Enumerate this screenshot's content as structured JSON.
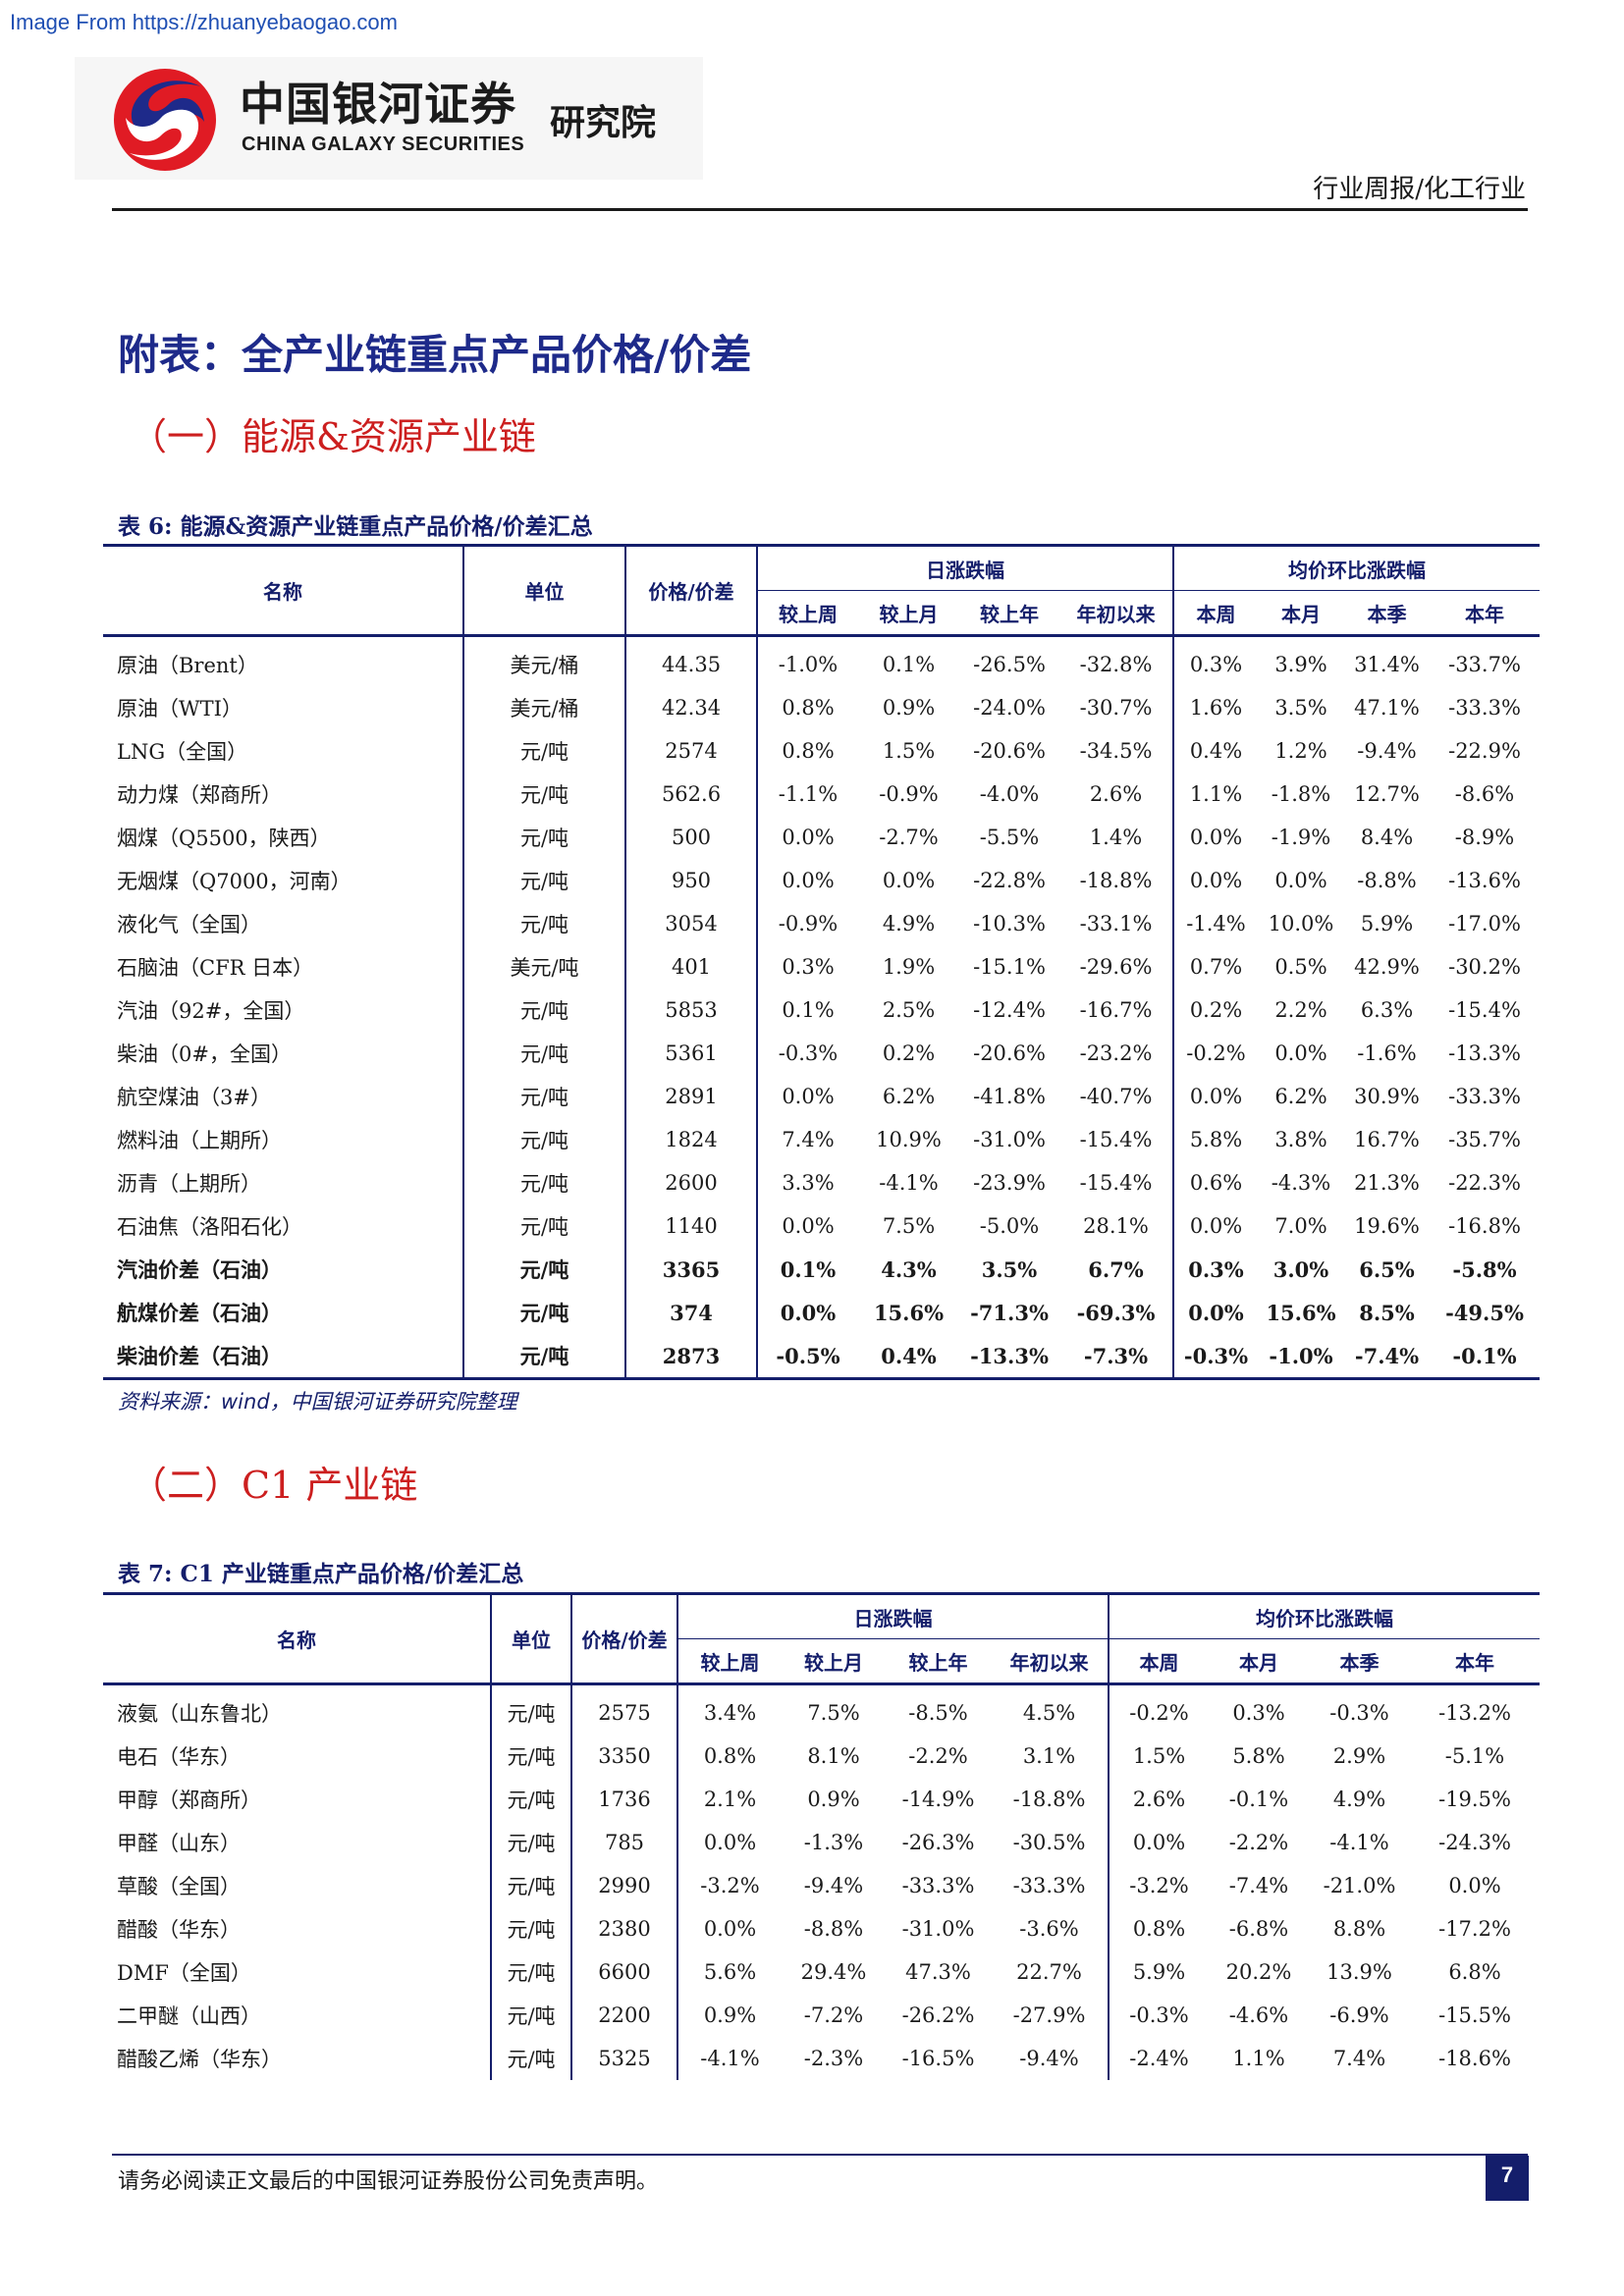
{
  "watermark": "Image From https://zhuanyebaogao.com",
  "logo": {
    "name_cn": "中国银河证券",
    "name_en": "CHINA GALAXY SECURITIES",
    "institute": "研究院"
  },
  "report_type": "行业周报/化工行业",
  "appendix_title": "附表：全产业链重点产品价格/价差",
  "sections": [
    {
      "title": "（一）能源&资源产业链",
      "caption": "表 6:  能源&资源产业链重点产品价格/价差汇总",
      "source": "资料来源：wind，中国银河证券研究院整理",
      "headers": {
        "name": "名称",
        "unit": "单位",
        "price": "价格/价差",
        "daily_group": "日涨跌幅",
        "avg_group": "均价环比涨跌幅",
        "daily": [
          "较上周",
          "较上月",
          "较上年",
          "年初以来"
        ],
        "avg": [
          "本周",
          "本月",
          "本季",
          "本年"
        ]
      },
      "rows": [
        {
          "name": "原油（Brent）",
          "unit": "美元/桶",
          "price": "44.35",
          "values": [
            "-1.0%",
            "0.1%",
            "-26.5%",
            "-32.8%",
            "0.3%",
            "3.9%",
            "31.4%",
            "-33.7%"
          ]
        },
        {
          "name": "原油（WTI）",
          "unit": "美元/桶",
          "price": "42.34",
          "values": [
            "0.8%",
            "0.9%",
            "-24.0%",
            "-30.7%",
            "1.6%",
            "3.5%",
            "47.1%",
            "-33.3%"
          ]
        },
        {
          "name": "LNG（全国）",
          "unit": "元/吨",
          "price": "2574",
          "values": [
            "0.8%",
            "1.5%",
            "-20.6%",
            "-34.5%",
            "0.4%",
            "1.2%",
            "-9.4%",
            "-22.9%"
          ]
        },
        {
          "name": "动力煤（郑商所）",
          "unit": "元/吨",
          "price": "562.6",
          "values": [
            "-1.1%",
            "-0.9%",
            "-4.0%",
            "2.6%",
            "1.1%",
            "-1.8%",
            "12.7%",
            "-8.6%"
          ]
        },
        {
          "name": "烟煤（Q5500，陕西）",
          "unit": "元/吨",
          "price": "500",
          "values": [
            "0.0%",
            "-2.7%",
            "-5.5%",
            "1.4%",
            "0.0%",
            "-1.9%",
            "8.4%",
            "-8.9%"
          ]
        },
        {
          "name": "无烟煤（Q7000，河南）",
          "unit": "元/吨",
          "price": "950",
          "values": [
            "0.0%",
            "0.0%",
            "-22.8%",
            "-18.8%",
            "0.0%",
            "0.0%",
            "-8.8%",
            "-13.6%"
          ]
        },
        {
          "name": "液化气（全国）",
          "unit": "元/吨",
          "price": "3054",
          "values": [
            "-0.9%",
            "4.9%",
            "-10.3%",
            "-33.1%",
            "-1.4%",
            "10.0%",
            "5.9%",
            "-17.0%"
          ]
        },
        {
          "name": "石脑油（CFR 日本）",
          "unit": "美元/吨",
          "price": "401",
          "values": [
            "0.3%",
            "1.9%",
            "-15.1%",
            "-29.6%",
            "0.7%",
            "0.5%",
            "42.9%",
            "-30.2%"
          ]
        },
        {
          "name": "汽油（92#，全国）",
          "unit": "元/吨",
          "price": "5853",
          "values": [
            "0.1%",
            "2.5%",
            "-12.4%",
            "-16.7%",
            "0.2%",
            "2.2%",
            "6.3%",
            "-15.4%"
          ]
        },
        {
          "name": "柴油（0#，全国）",
          "unit": "元/吨",
          "price": "5361",
          "values": [
            "-0.3%",
            "0.2%",
            "-20.6%",
            "-23.2%",
            "-0.2%",
            "0.0%",
            "-1.6%",
            "-13.3%"
          ]
        },
        {
          "name": "航空煤油（3#）",
          "unit": "元/吨",
          "price": "2891",
          "values": [
            "0.0%",
            "6.2%",
            "-41.8%",
            "-40.7%",
            "0.0%",
            "6.2%",
            "30.9%",
            "-33.3%"
          ]
        },
        {
          "name": "燃料油（上期所）",
          "unit": "元/吨",
          "price": "1824",
          "values": [
            "7.4%",
            "10.9%",
            "-31.0%",
            "-15.4%",
            "5.8%",
            "3.8%",
            "16.7%",
            "-35.7%"
          ]
        },
        {
          "name": "沥青（上期所）",
          "unit": "元/吨",
          "price": "2600",
          "values": [
            "3.3%",
            "-4.1%",
            "-23.9%",
            "-15.4%",
            "0.6%",
            "-4.3%",
            "21.3%",
            "-22.3%"
          ]
        },
        {
          "name": "石油焦（洛阳石化）",
          "unit": "元/吨",
          "price": "1140",
          "values": [
            "0.0%",
            "7.5%",
            "-5.0%",
            "28.1%",
            "0.0%",
            "7.0%",
            "19.6%",
            "-16.8%"
          ]
        },
        {
          "name": "汽油价差（石油）",
          "unit": "元/吨",
          "price": "3365",
          "bold": true,
          "values": [
            "0.1%",
            "4.3%",
            "3.5%",
            "6.7%",
            "0.3%",
            "3.0%",
            "6.5%",
            "-5.8%"
          ]
        },
        {
          "name": "航煤价差（石油）",
          "unit": "元/吨",
          "price": "374",
          "bold": true,
          "values": [
            "0.0%",
            "15.6%",
            "-71.3%",
            "-69.3%",
            "0.0%",
            "15.6%",
            "8.5%",
            "-49.5%"
          ]
        },
        {
          "name": "柴油价差（石油）",
          "unit": "元/吨",
          "price": "2873",
          "bold": true,
          "values": [
            "-0.5%",
            "0.4%",
            "-13.3%",
            "-7.3%",
            "-0.3%",
            "-1.0%",
            "-7.4%",
            "-0.1%"
          ]
        }
      ]
    },
    {
      "title": "（二）C1 产业链",
      "caption": "表 7:  C1 产业链重点产品价格/价差汇总",
      "headers": {
        "name": "名称",
        "unit": "单位",
        "price": "价格/价差",
        "daily_group": "日涨跌幅",
        "avg_group": "均价环比涨跌幅",
        "daily": [
          "较上周",
          "较上月",
          "较上年",
          "年初以来"
        ],
        "avg": [
          "本周",
          "本月",
          "本季",
          "本年"
        ]
      },
      "rows": [
        {
          "name": "液氨（山东鲁北）",
          "unit": "元/吨",
          "price": "2575",
          "values": [
            "3.4%",
            "7.5%",
            "-8.5%",
            "4.5%",
            "-0.2%",
            "0.3%",
            "-0.3%",
            "-13.2%"
          ]
        },
        {
          "name": "电石（华东）",
          "unit": "元/吨",
          "price": "3350",
          "values": [
            "0.8%",
            "8.1%",
            "-2.2%",
            "3.1%",
            "1.5%",
            "5.8%",
            "2.9%",
            "-5.1%"
          ]
        },
        {
          "name": "甲醇（郑商所）",
          "unit": "元/吨",
          "price": "1736",
          "values": [
            "2.1%",
            "0.9%",
            "-14.9%",
            "-18.8%",
            "2.6%",
            "-0.1%",
            "4.9%",
            "-19.5%"
          ]
        },
        {
          "name": "甲醛（山东）",
          "unit": "元/吨",
          "price": "785",
          "values": [
            "0.0%",
            "-1.3%",
            "-26.3%",
            "-30.5%",
            "0.0%",
            "-2.2%",
            "-4.1%",
            "-24.3%"
          ]
        },
        {
          "name": "草酸（全国）",
          "unit": "元/吨",
          "price": "2990",
          "values": [
            "-3.2%",
            "-9.4%",
            "-33.3%",
            "-33.3%",
            "-3.2%",
            "-7.4%",
            "-21.0%",
            "0.0%"
          ]
        },
        {
          "name": "醋酸（华东）",
          "unit": "元/吨",
          "price": "2380",
          "values": [
            "0.0%",
            "-8.8%",
            "-31.0%",
            "-3.6%",
            "0.8%",
            "-6.8%",
            "8.8%",
            "-17.2%"
          ]
        },
        {
          "name": "DMF（全国）",
          "unit": "元/吨",
          "price": "6600",
          "values": [
            "5.6%",
            "29.4%",
            "47.3%",
            "22.7%",
            "5.9%",
            "20.2%",
            "13.9%",
            "6.8%"
          ]
        },
        {
          "name": "二甲醚（山西）",
          "unit": "元/吨",
          "price": "2200",
          "values": [
            "0.9%",
            "-7.2%",
            "-26.2%",
            "-27.9%",
            "-0.3%",
            "-4.6%",
            "-6.9%",
            "-15.5%"
          ]
        },
        {
          "name": "醋酸乙烯（华东）",
          "unit": "元/吨",
          "price": "5325",
          "values": [
            "-4.1%",
            "-2.3%",
            "-16.5%",
            "-9.4%",
            "-2.4%",
            "1.1%",
            "7.4%",
            "-18.6%"
          ]
        }
      ]
    }
  ],
  "footer": {
    "disclaimer": "请务必阅读正文最后的中国银河证券股份公司免责声明。",
    "page": "7"
  }
}
